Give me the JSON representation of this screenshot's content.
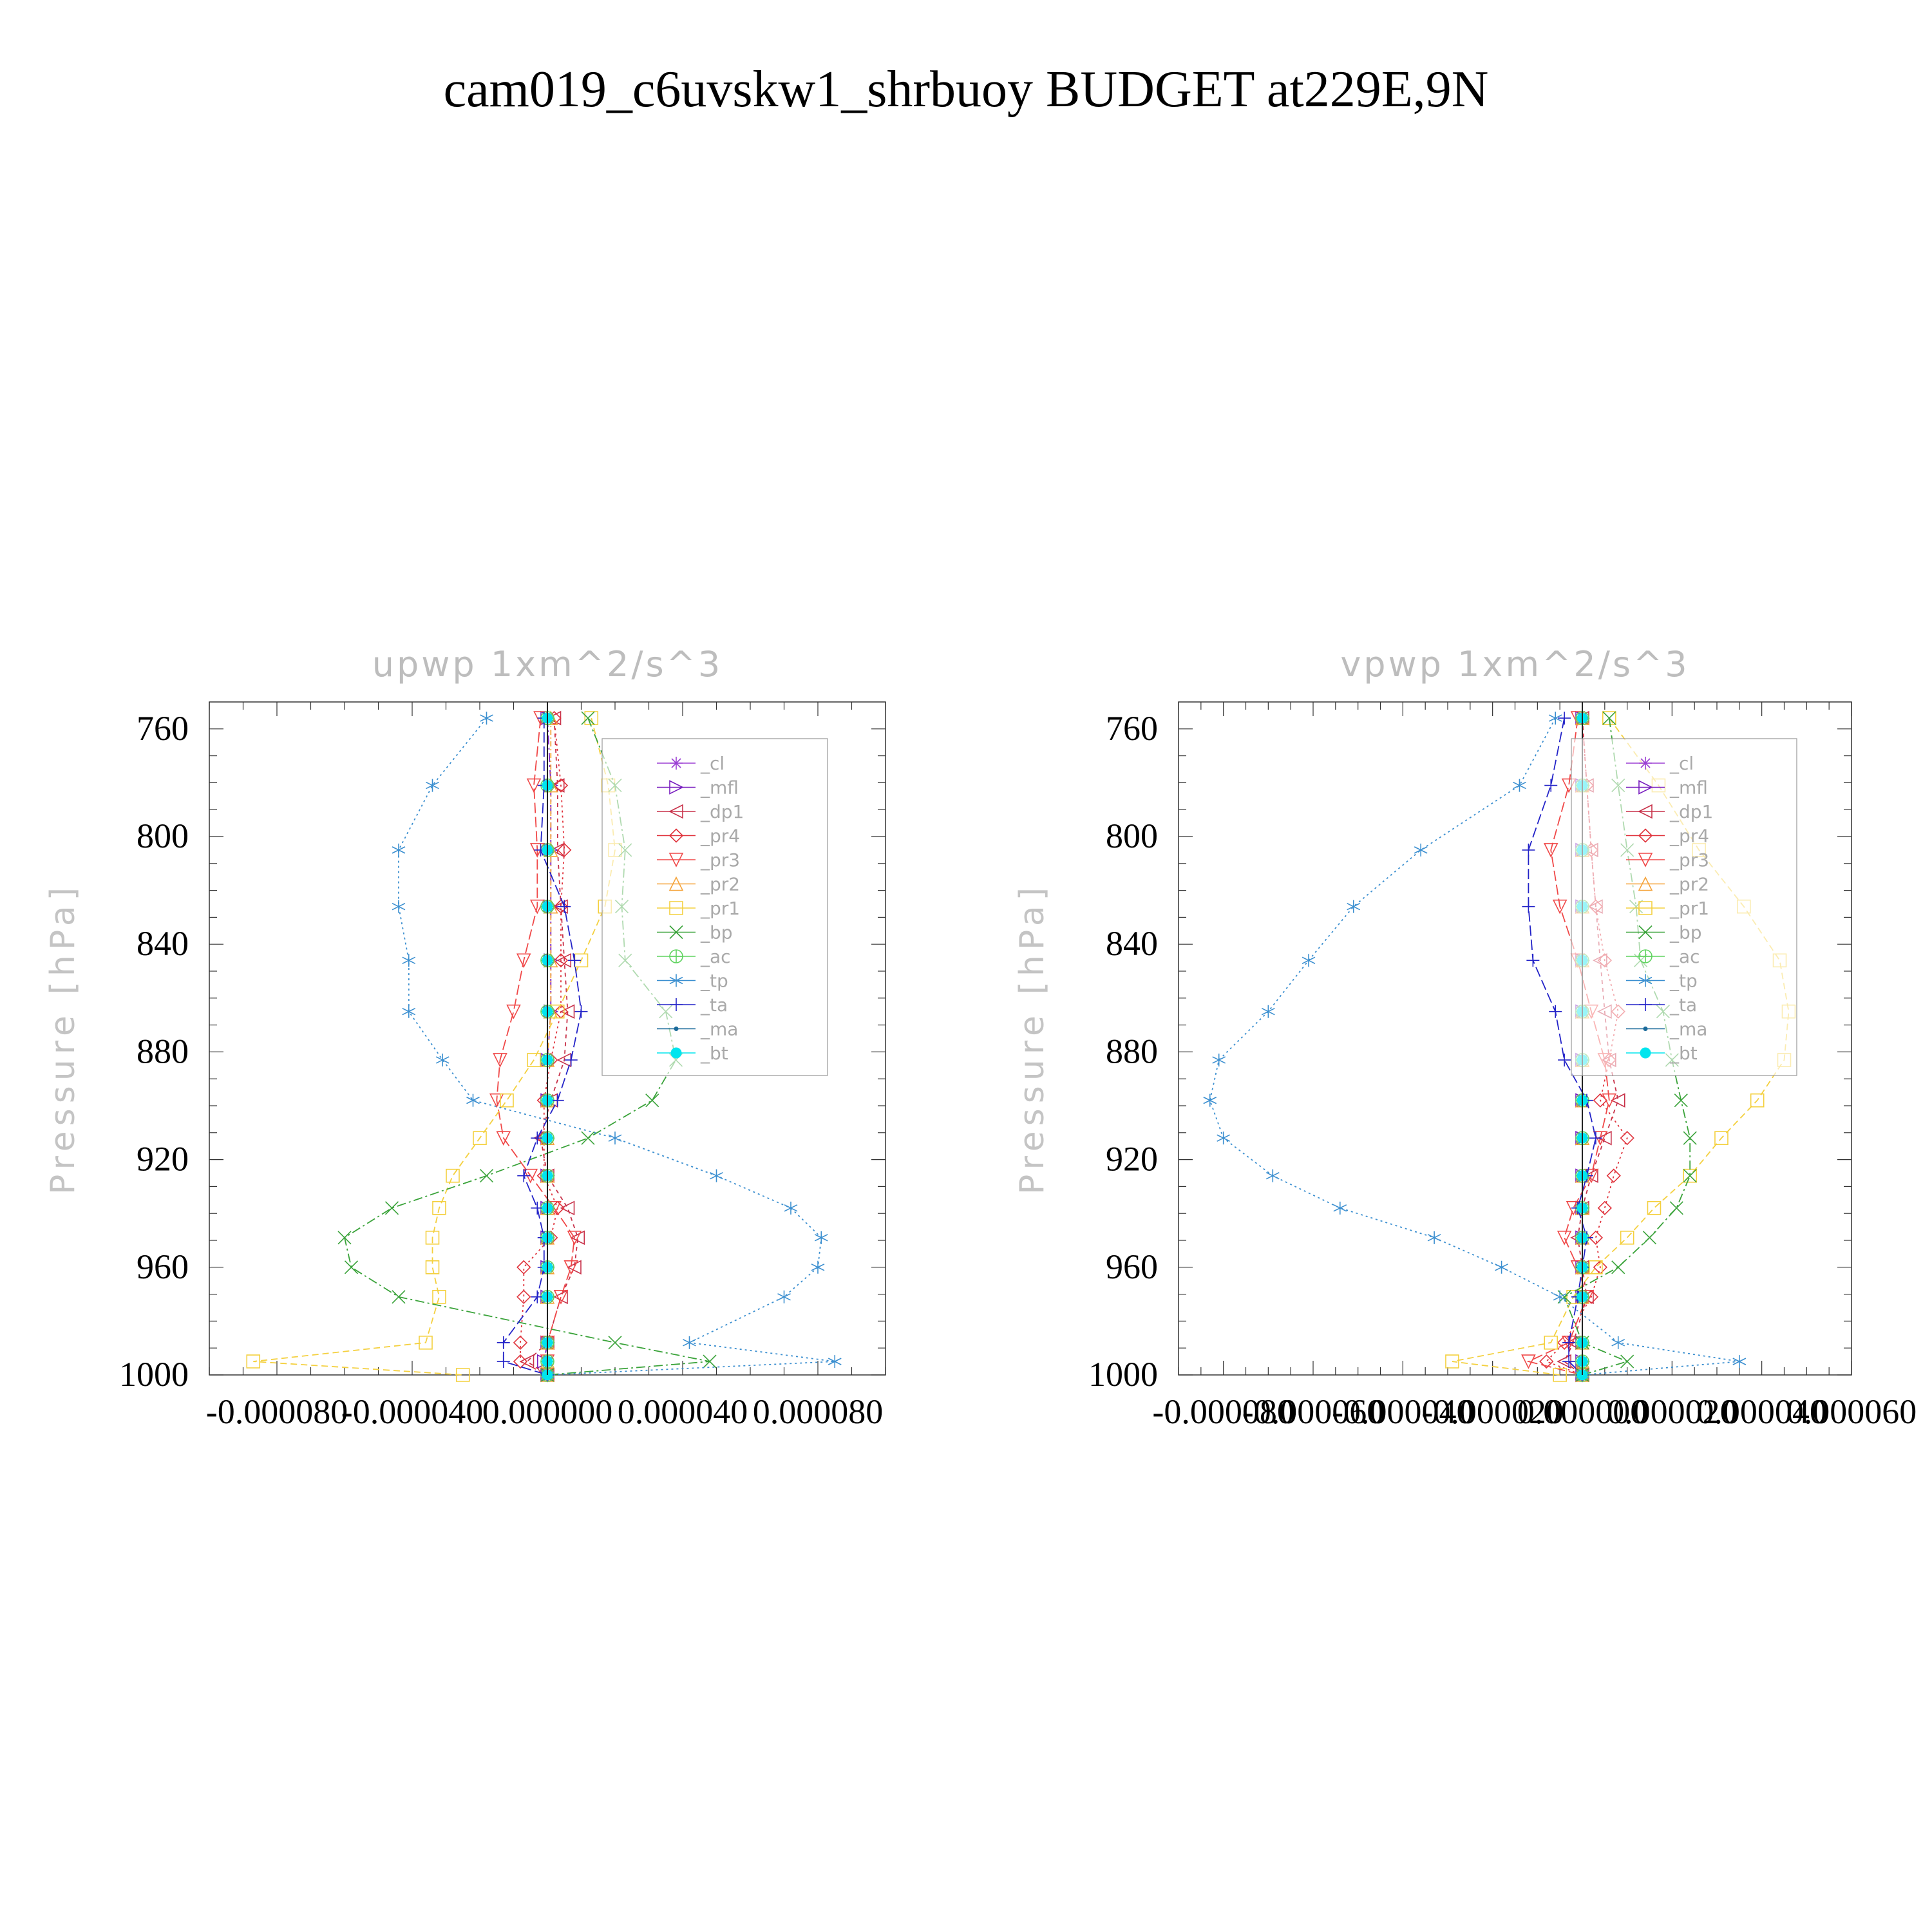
{
  "figure": {
    "title": "cam019_c6uvskw1_shrbuoy  BUDGET at229E,9N",
    "ylabel": "Pressure [hPa]",
    "y_ticks": [
      "760",
      "800",
      "840",
      "880",
      "920",
      "960",
      "1000"
    ]
  },
  "legend": {
    "entries": [
      {
        "label": "_cl",
        "color": "#9b3fd4",
        "marker": "star"
      },
      {
        "label": "_mfl",
        "color": "#7a1fc0",
        "marker": "tri-right"
      },
      {
        "label": "_dp1",
        "color": "#c8324a",
        "marker": "tri-left"
      },
      {
        "label": "_pr4",
        "color": "#e0333c",
        "marker": "diamond"
      },
      {
        "label": "_pr3",
        "color": "#f04848",
        "marker": "tri-down"
      },
      {
        "label": "_pr2",
        "color": "#f5a33a",
        "marker": "tri-up"
      },
      {
        "label": "_pr1",
        "color": "#f4d03f",
        "marker": "square"
      },
      {
        "label": "_bp",
        "color": "#3aa33a",
        "marker": "x"
      },
      {
        "label": "_ac",
        "color": "#5fd35f",
        "marker": "plus-circle"
      },
      {
        "label": "_tp",
        "color": "#3b8fd0",
        "marker": "asterisk"
      },
      {
        "label": "_ta",
        "color": "#2323c8",
        "marker": "plus"
      },
      {
        "label": "_ma",
        "color": "#1a6a9a",
        "marker": "dot"
      },
      {
        "label": "_bt",
        "color": "#00e5ee",
        "marker": "filled-circle"
      }
    ]
  },
  "chart_data": [
    {
      "type": "line",
      "title": "upwp   1xm^2/s^3",
      "ylabel": "Pressure [hPa]",
      "xlabel": "",
      "xlim": [
        -0.0001,
        0.0001
      ],
      "ylim": [
        1000,
        750
      ],
      "x_ticks": [
        -8e-05,
        -4e-05,
        0.0,
        4e-05,
        8e-05
      ],
      "x_tick_labels": [
        "-0.000080",
        "-0.000040",
        "0.000000",
        "0.000040",
        "0.000080"
      ],
      "y": [
        756,
        781,
        805,
        826,
        846,
        865,
        883,
        898,
        912,
        926,
        938,
        949,
        960,
        971,
        988,
        995,
        1000
      ],
      "series": [
        {
          "name": "_cl",
          "values": [
            0.0,
            0.0,
            0.0,
            0.0,
            0.0,
            0.0,
            0.0,
            0.0,
            0.0,
            0.0,
            0.0,
            0.0,
            0.0,
            0.0,
            0.0,
            0.0,
            0.0
          ]
        },
        {
          "name": "_mfl",
          "values": [
            0.0,
            1e-06,
            1e-06,
            1e-06,
            1e-06,
            1e-06,
            0.0,
            0.0,
            0.0,
            0.0,
            0.0,
            0.0,
            0.0,
            0.0,
            0.0,
            -1e-06,
            0.0
          ]
        },
        {
          "name": "_dp1",
          "values": [
            2e-06,
            3e-06,
            3e-06,
            4e-06,
            5e-06,
            6e-06,
            5e-06,
            1e-06,
            -2e-06,
            0.0,
            6e-06,
            9e-06,
            8e-06,
            4e-06,
            0.0,
            -6e-06,
            0.0
          ]
        },
        {
          "name": "_pr4",
          "values": [
            2e-06,
            4e-06,
            5e-06,
            4e-06,
            4e-06,
            4e-06,
            1e-06,
            -1e-06,
            -1e-06,
            -1e-06,
            3e-06,
            1e-06,
            -7e-06,
            -7e-06,
            -8e-06,
            -8e-06,
            0.0
          ]
        },
        {
          "name": "_pr3",
          "values": [
            -2e-06,
            -4e-06,
            -3e-06,
            -3e-06,
            -7e-06,
            -1e-05,
            -1.4e-05,
            -1.5e-05,
            -1.3e-05,
            -5e-06,
            2e-06,
            8e-06,
            7e-06,
            4e-06,
            0.0,
            0.0,
            0.0
          ]
        },
        {
          "name": "_pr2",
          "values": [
            1e-06,
            1e-06,
            1e-06,
            1e-06,
            1e-06,
            1e-06,
            0.0,
            0.0,
            0.0,
            0.0,
            0.0,
            0.0,
            0.0,
            0.0,
            0.0,
            0.0,
            0.0
          ]
        },
        {
          "name": "_pr1",
          "values": [
            1.3e-05,
            1.8e-05,
            2e-05,
            1.7e-05,
            1e-05,
            3e-06,
            -4e-06,
            -1.2e-05,
            -2e-05,
            -2.8e-05,
            -3.2e-05,
            -3.4e-05,
            -3.4e-05,
            -3.2e-05,
            -3.6e-05,
            -8.7e-05,
            -2.5e-05
          ]
        },
        {
          "name": "_bp",
          "values": [
            1.2e-05,
            2e-05,
            2.3e-05,
            2.2e-05,
            2.3e-05,
            3.5e-05,
            3.8e-05,
            3.1e-05,
            1.2e-05,
            -1.8e-05,
            -4.6e-05,
            -6e-05,
            -5.8e-05,
            -4.4e-05,
            2e-05,
            4.8e-05,
            0.0
          ]
        },
        {
          "name": "_ac",
          "values": [
            0.0,
            0.0,
            0.0,
            0.0,
            0.0,
            0.0,
            0.0,
            0.0,
            0.0,
            0.0,
            0.0,
            0.0,
            0.0,
            0.0,
            0.0,
            0.0,
            0.0
          ]
        },
        {
          "name": "_tp",
          "values": [
            -1.8e-05,
            -3.4e-05,
            -4.4e-05,
            -4.4e-05,
            -4.1e-05,
            -4.1e-05,
            -3.1e-05,
            -2.2e-05,
            2e-05,
            5e-05,
            7.2e-05,
            8.1e-05,
            8e-05,
            7e-05,
            4.2e-05,
            8.5e-05,
            0.0
          ]
        },
        {
          "name": "_ta",
          "values": [
            -1e-06,
            -1e-06,
            -2e-06,
            5e-06,
            8e-06,
            1e-05,
            7e-06,
            3e-06,
            -3e-06,
            -7e-06,
            -3e-06,
            -1e-06,
            -1e-06,
            -3e-06,
            -1.3e-05,
            -1.3e-05,
            0.0
          ]
        },
        {
          "name": "_ma",
          "values": [
            0.0,
            0.0,
            0.0,
            0.0,
            0.0,
            0.0,
            0.0,
            0.0,
            0.0,
            0.0,
            0.0,
            0.0,
            0.0,
            0.0,
            0.0,
            0.0,
            0.0
          ]
        },
        {
          "name": "_bt",
          "values": [
            0.0,
            0.0,
            0.0,
            0.0,
            0.0,
            0.0,
            0.0,
            0.0,
            0.0,
            0.0,
            0.0,
            0.0,
            0.0,
            0.0,
            0.0,
            0.0,
            0.0
          ]
        }
      ]
    },
    {
      "type": "line",
      "title": "vpwp   1xm^2/s^3",
      "ylabel": "Pressure [hPa]",
      "xlabel": "",
      "xlim": [
        -9e-05,
        6e-05
      ],
      "ylim": [
        1000,
        750
      ],
      "x_ticks": [
        -8e-05,
        -6e-05,
        -4e-05,
        -2e-05,
        0.0,
        2e-05,
        4e-05,
        6e-05
      ],
      "x_tick_labels": [
        "-0.000080",
        "-0.000060",
        "-0.000040",
        "-0.000020",
        "0.000000",
        "0.000020",
        "0.000040",
        "0.000060"
      ],
      "y": [
        756,
        781,
        805,
        826,
        846,
        865,
        883,
        898,
        912,
        926,
        938,
        949,
        960,
        971,
        988,
        995,
        1000
      ],
      "series": [
        {
          "name": "_cl",
          "values": [
            0.0,
            0.0,
            0.0,
            0.0,
            0.0,
            0.0,
            0.0,
            0.0,
            0.0,
            0.0,
            0.0,
            0.0,
            0.0,
            0.0,
            0.0,
            0.0,
            0.0
          ]
        },
        {
          "name": "_mfl",
          "values": [
            0.0,
            0.0,
            0.0,
            0.0,
            0.0,
            0.0,
            0.0,
            0.0,
            0.0,
            0.0,
            0.0,
            0.0,
            0.0,
            0.0,
            0.0,
            0.0,
            0.0
          ]
        },
        {
          "name": "_dp1",
          "values": [
            0.0,
            1e-06,
            2e-06,
            3e-06,
            4e-06,
            5e-06,
            6e-06,
            8e-06,
            5e-06,
            2e-06,
            0.0,
            -1e-06,
            0.0,
            1e-06,
            -2e-06,
            -4e-06,
            0.0
          ]
        },
        {
          "name": "_pr4",
          "values": [
            0.0,
            1e-06,
            2e-06,
            3e-06,
            5e-06,
            8e-06,
            6e-06,
            4e-06,
            1e-05,
            7e-06,
            5e-06,
            3e-06,
            4e-06,
            2e-06,
            -4e-06,
            -8e-06,
            0.0
          ]
        },
        {
          "name": "_pr3",
          "values": [
            -1e-06,
            -3e-06,
            -7e-06,
            -5e-06,
            -1e-06,
            2e-06,
            5e-06,
            6e-06,
            4e-06,
            2e-06,
            -2e-06,
            -4e-06,
            -1e-06,
            1e-06,
            -3e-06,
            -1.2e-05,
            0.0
          ]
        },
        {
          "name": "_pr2",
          "values": [
            0.0,
            0.0,
            0.0,
            0.0,
            0.0,
            0.0,
            0.0,
            0.0,
            0.0,
            0.0,
            0.0,
            0.0,
            0.0,
            0.0,
            0.0,
            0.0,
            0.0
          ]
        },
        {
          "name": "_pr1",
          "values": [
            6e-06,
            1.7e-05,
            2.6e-05,
            3.6e-05,
            4.4e-05,
            4.6e-05,
            4.5e-05,
            3.9e-05,
            3.1e-05,
            2.4e-05,
            1.6e-05,
            1e-05,
            3e-06,
            -2e-06,
            -7e-06,
            -2.9e-05,
            -5e-06
          ]
        },
        {
          "name": "_bp",
          "values": [
            6e-06,
            8e-06,
            1e-05,
            1.2e-05,
            1.3e-05,
            1.8e-05,
            2e-05,
            2.2e-05,
            2.4e-05,
            2.4e-05,
            2.1e-05,
            1.5e-05,
            8e-06,
            -4e-06,
            0.0,
            1e-05,
            0.0
          ]
        },
        {
          "name": "_ac",
          "values": [
            0.0,
            0.0,
            0.0,
            0.0,
            0.0,
            0.0,
            0.0,
            0.0,
            0.0,
            0.0,
            0.0,
            0.0,
            0.0,
            0.0,
            0.0,
            0.0,
            0.0
          ]
        },
        {
          "name": "_tp",
          "values": [
            -6e-06,
            -1.4e-05,
            -3.6e-05,
            -5.1e-05,
            -6.1e-05,
            -7e-05,
            -8.1e-05,
            -8.3e-05,
            -8e-05,
            -6.9e-05,
            -5.4e-05,
            -3.3e-05,
            -1.8e-05,
            -5e-06,
            8e-06,
            3.5e-05,
            0.0
          ]
        },
        {
          "name": "_ta",
          "values": [
            -4e-06,
            -7e-06,
            -1.2e-05,
            -1.2e-05,
            -1.1e-05,
            -6e-06,
            -4e-06,
            1e-06,
            3e-06,
            1e-06,
            -1e-06,
            1e-06,
            0.0,
            -1e-06,
            -3e-06,
            -3e-06,
            0.0
          ]
        },
        {
          "name": "_ma",
          "values": [
            0.0,
            0.0,
            0.0,
            0.0,
            0.0,
            0.0,
            0.0,
            0.0,
            0.0,
            0.0,
            0.0,
            0.0,
            0.0,
            0.0,
            0.0,
            0.0,
            0.0
          ]
        },
        {
          "name": "_bt",
          "values": [
            0.0,
            0.0,
            0.0,
            0.0,
            0.0,
            0.0,
            0.0,
            0.0,
            0.0,
            0.0,
            0.0,
            0.0,
            0.0,
            0.0,
            0.0,
            0.0,
            0.0
          ]
        }
      ]
    }
  ]
}
